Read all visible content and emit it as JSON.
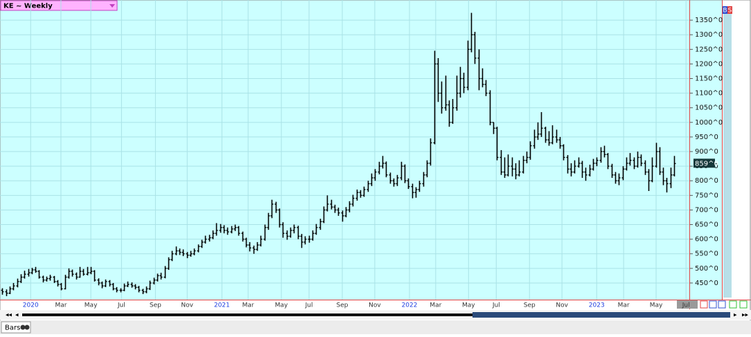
{
  "header": {
    "symbol": "KE ~ Weekly",
    "buttons": [
      "B",
      "S"
    ]
  },
  "footer": {
    "tab": "Bars"
  },
  "chart_data": {
    "type": "ohlc",
    "grid": true,
    "color": "#000000",
    "ylim": [
      393,
      1419
    ],
    "xlim": [
      -0.6,
      186.1
    ],
    "yticks": [
      {
        "value": 450,
        "label": "450^0"
      },
      {
        "value": 500,
        "label": "500^0"
      },
      {
        "value": 550,
        "label": "550^0"
      },
      {
        "value": 600,
        "label": "600^0"
      },
      {
        "value": 650,
        "label": "650^0"
      },
      {
        "value": 700,
        "label": "700^0"
      },
      {
        "value": 750,
        "label": "750^0"
      },
      {
        "value": 800,
        "label": "800^0"
      },
      {
        "value": 850,
        "label": "850^0"
      },
      {
        "value": 900,
        "label": "900^0"
      },
      {
        "value": 950,
        "label": "950^0"
      },
      {
        "value": 1000,
        "label": "1000^0"
      },
      {
        "value": 1050,
        "label": "1050^0"
      },
      {
        "value": 1100,
        "label": "1100^0"
      },
      {
        "value": 1150,
        "label": "1150^0"
      },
      {
        "value": 1200,
        "label": "1200^0"
      },
      {
        "value": 1250,
        "label": "1250^0"
      },
      {
        "value": 1300,
        "label": "1300^0"
      },
      {
        "value": 1350,
        "label": "1350^0"
      }
    ],
    "xticks": [
      {
        "value": 7.7,
        "label": "2020"
      },
      {
        "value": 15.9,
        "label": "Mar"
      },
      {
        "value": 24.0,
        "label": "May"
      },
      {
        "value": 32.3,
        "label": "Jul"
      },
      {
        "value": 41.5,
        "label": "Sep"
      },
      {
        "value": 50.1,
        "label": "Nov"
      },
      {
        "value": 59.5,
        "label": "2021"
      },
      {
        "value": 66.6,
        "label": "Mar"
      },
      {
        "value": 75.6,
        "label": "May"
      },
      {
        "value": 83.1,
        "label": "Jul"
      },
      {
        "value": 92.1,
        "label": "Sep"
      },
      {
        "value": 100.9,
        "label": "Nov"
      },
      {
        "value": 110.3,
        "label": "2022"
      },
      {
        "value": 117.4,
        "label": "Mar"
      },
      {
        "value": 126.3,
        "label": "May"
      },
      {
        "value": 133.8,
        "label": "Jul"
      },
      {
        "value": 142.8,
        "label": "Sep"
      },
      {
        "value": 151.6,
        "label": "Nov"
      },
      {
        "value": 161.0,
        "label": "2023"
      },
      {
        "value": 168.3,
        "label": "Mar"
      },
      {
        "value": 177.1,
        "label": "May"
      },
      {
        "value": 185.2,
        "label": "Jul"
      }
    ],
    "last_price": {
      "value": 859,
      "label": "859^0"
    },
    "bars": [
      [
        425,
        432,
        410,
        420
      ],
      [
        420,
        428,
        405,
        415
      ],
      [
        415,
        438,
        412,
        430
      ],
      [
        430,
        450,
        425,
        440
      ],
      [
        440,
        465,
        435,
        455
      ],
      [
        455,
        480,
        450,
        470
      ],
      [
        470,
        492,
        465,
        480
      ],
      [
        480,
        498,
        472,
        485
      ],
      [
        485,
        502,
        480,
        495
      ],
      [
        495,
        505,
        485,
        490
      ],
      [
        490,
        494,
        465,
        470
      ],
      [
        470,
        475,
        452,
        460
      ],
      [
        460,
        472,
        455,
        465
      ],
      [
        465,
        478,
        458,
        470
      ],
      [
        470,
        474,
        450,
        455
      ],
      [
        455,
        460,
        438,
        445
      ],
      [
        445,
        450,
        425,
        430
      ],
      [
        430,
        478,
        428,
        470
      ],
      [
        470,
        500,
        465,
        490
      ],
      [
        490,
        496,
        472,
        480
      ],
      [
        480,
        486,
        462,
        470
      ],
      [
        470,
        505,
        468,
        490
      ],
      [
        490,
        498,
        475,
        480
      ],
      [
        480,
        505,
        476,
        485
      ],
      [
        485,
        505,
        480,
        490
      ],
      [
        490,
        494,
        455,
        460
      ],
      [
        460,
        466,
        442,
        450
      ],
      [
        450,
        455,
        432,
        440
      ],
      [
        440,
        462,
        436,
        455
      ],
      [
        455,
        460,
        438,
        445
      ],
      [
        445,
        450,
        425,
        430
      ],
      [
        430,
        436,
        418,
        425
      ],
      [
        425,
        432,
        418,
        425
      ],
      [
        425,
        448,
        422,
        440
      ],
      [
        440,
        455,
        436,
        445
      ],
      [
        445,
        452,
        434,
        440
      ],
      [
        440,
        446,
        428,
        435
      ],
      [
        435,
        440,
        418,
        425
      ],
      [
        425,
        430,
        412,
        420
      ],
      [
        420,
        438,
        415,
        430
      ],
      [
        430,
        458,
        426,
        450
      ],
      [
        450,
        468,
        445,
        460
      ],
      [
        460,
        482,
        455,
        475
      ],
      [
        475,
        485,
        462,
        470
      ],
      [
        470,
        508,
        466,
        500
      ],
      [
        500,
        538,
        495,
        530
      ],
      [
        530,
        560,
        525,
        550
      ],
      [
        550,
        575,
        545,
        560
      ],
      [
        560,
        568,
        546,
        555
      ],
      [
        555,
        565,
        542,
        550
      ],
      [
        550,
        556,
        535,
        545
      ],
      [
        545,
        560,
        540,
        550
      ],
      [
        550,
        568,
        545,
        560
      ],
      [
        560,
        582,
        555,
        575
      ],
      [
        575,
        598,
        570,
        590
      ],
      [
        590,
        612,
        585,
        600
      ],
      [
        600,
        615,
        592,
        605
      ],
      [
        605,
        630,
        600,
        620
      ],
      [
        620,
        655,
        612,
        630
      ],
      [
        630,
        652,
        622,
        640
      ],
      [
        640,
        648,
        620,
        630
      ],
      [
        630,
        640,
        615,
        625
      ],
      [
        625,
        645,
        620,
        635
      ],
      [
        635,
        650,
        628,
        640
      ],
      [
        640,
        645,
        612,
        620
      ],
      [
        620,
        626,
        592,
        600
      ],
      [
        600,
        605,
        572,
        580
      ],
      [
        580,
        590,
        558,
        570
      ],
      [
        570,
        578,
        550,
        565
      ],
      [
        565,
        590,
        560,
        580
      ],
      [
        580,
        612,
        575,
        600
      ],
      [
        600,
        650,
        595,
        640
      ],
      [
        640,
        690,
        632,
        680
      ],
      [
        680,
        735,
        672,
        720
      ],
      [
        720,
        728,
        690,
        700
      ],
      [
        700,
        705,
        640,
        650
      ],
      [
        650,
        658,
        605,
        620
      ],
      [
        620,
        630,
        598,
        610
      ],
      [
        610,
        640,
        605,
        630
      ],
      [
        630,
        650,
        620,
        640
      ],
      [
        640,
        646,
        600,
        610
      ],
      [
        610,
        618,
        570,
        590
      ],
      [
        590,
        610,
        582,
        600
      ],
      [
        600,
        612,
        588,
        600
      ],
      [
        600,
        630,
        595,
        620
      ],
      [
        620,
        652,
        615,
        640
      ],
      [
        640,
        670,
        632,
        660
      ],
      [
        660,
        712,
        655,
        700
      ],
      [
        700,
        750,
        695,
        720
      ],
      [
        720,
        735,
        702,
        710
      ],
      [
        710,
        718,
        690,
        700
      ],
      [
        700,
        708,
        680,
        690
      ],
      [
        690,
        698,
        660,
        680
      ],
      [
        680,
        710,
        675,
        700
      ],
      [
        700,
        730,
        692,
        720
      ],
      [
        720,
        752,
        712,
        740
      ],
      [
        740,
        770,
        732,
        760
      ],
      [
        760,
        768,
        742,
        750
      ],
      [
        750,
        780,
        745,
        770
      ],
      [
        770,
        800,
        762,
        790
      ],
      [
        790,
        825,
        782,
        810
      ],
      [
        810,
        840,
        800,
        830
      ],
      [
        830,
        865,
        822,
        850
      ],
      [
        850,
        885,
        842,
        860
      ],
      [
        860,
        866,
        812,
        820
      ],
      [
        820,
        828,
        790,
        800
      ],
      [
        800,
        808,
        780,
        790
      ],
      [
        790,
        820,
        782,
        810
      ],
      [
        810,
        865,
        802,
        850
      ],
      [
        850,
        856,
        792,
        800
      ],
      [
        800,
        808,
        772,
        780
      ],
      [
        780,
        790,
        740,
        760
      ],
      [
        760,
        778,
        742,
        770
      ],
      [
        770,
        800,
        762,
        790
      ],
      [
        790,
        830,
        780,
        820
      ],
      [
        820,
        870,
        812,
        860
      ],
      [
        860,
        945,
        852,
        930
      ],
      [
        930,
        1245,
        925,
        1200
      ],
      [
        1200,
        1220,
        1070,
        1100
      ],
      [
        1100,
        1140,
        1030,
        1050
      ],
      [
        1050,
        1160,
        1040,
        1060
      ],
      [
        1060,
        1075,
        985,
        1000
      ],
      [
        1000,
        1080,
        995,
        1050
      ],
      [
        1050,
        1160,
        1040,
        1100
      ],
      [
        1100,
        1190,
        1085,
        1150
      ],
      [
        1150,
        1170,
        1100,
        1120
      ],
      [
        1120,
        1280,
        1110,
        1250
      ],
      [
        1250,
        1375,
        1240,
        1300
      ],
      [
        1300,
        1310,
        1200,
        1220
      ],
      [
        1220,
        1250,
        1110,
        1150
      ],
      [
        1150,
        1185,
        1120,
        1130
      ],
      [
        1130,
        1145,
        1090,
        1100
      ],
      [
        1100,
        1110,
        990,
        1000
      ],
      [
        1000,
        1000,
        960,
        980
      ],
      [
        980,
        985,
        870,
        880
      ],
      [
        880,
        905,
        820,
        830
      ],
      [
        830,
        880,
        810,
        820
      ],
      [
        820,
        890,
        815,
        850
      ],
      [
        850,
        880,
        815,
        840
      ],
      [
        840,
        860,
        805,
        820
      ],
      [
        820,
        870,
        815,
        830
      ],
      [
        830,
        885,
        825,
        870
      ],
      [
        870,
        900,
        860,
        880
      ],
      [
        880,
        935,
        872,
        920
      ],
      [
        920,
        975,
        910,
        950
      ],
      [
        950,
        1000,
        940,
        960
      ],
      [
        960,
        1035,
        950,
        980
      ],
      [
        980,
        985,
        930,
        940
      ],
      [
        940,
        970,
        920,
        930
      ],
      [
        930,
        990,
        925,
        950
      ],
      [
        950,
        975,
        930,
        940
      ],
      [
        940,
        950,
        910,
        920
      ],
      [
        920,
        925,
        870,
        880
      ],
      [
        880,
        888,
        825,
        840
      ],
      [
        840,
        860,
        815,
        830
      ],
      [
        830,
        870,
        825,
        850
      ],
      [
        850,
        880,
        845,
        860
      ],
      [
        860,
        868,
        810,
        830
      ],
      [
        830,
        845,
        800,
        820
      ],
      [
        820,
        855,
        815,
        840
      ],
      [
        840,
        875,
        835,
        860
      ],
      [
        860,
        880,
        850,
        870
      ],
      [
        870,
        915,
        862,
        900
      ],
      [
        900,
        920,
        880,
        890
      ],
      [
        890,
        895,
        840,
        850
      ],
      [
        850,
        858,
        810,
        820
      ],
      [
        820,
        830,
        790,
        800
      ],
      [
        800,
        825,
        785,
        810
      ],
      [
        810,
        850,
        802,
        840
      ],
      [
        840,
        880,
        835,
        860
      ],
      [
        860,
        895,
        852,
        870
      ],
      [
        870,
        880,
        840,
        850
      ],
      [
        850,
        900,
        845,
        880
      ],
      [
        880,
        890,
        850,
        860
      ],
      [
        860,
        870,
        820,
        830
      ],
      [
        830,
        840,
        765,
        800
      ],
      [
        800,
        880,
        795,
        850
      ],
      [
        850,
        930,
        845,
        900
      ],
      [
        900,
        915,
        820,
        830
      ],
      [
        830,
        845,
        785,
        800
      ],
      [
        800,
        810,
        760,
        790
      ],
      [
        790,
        845,
        775,
        820
      ],
      [
        820,
        885,
        815,
        859
      ]
    ]
  }
}
